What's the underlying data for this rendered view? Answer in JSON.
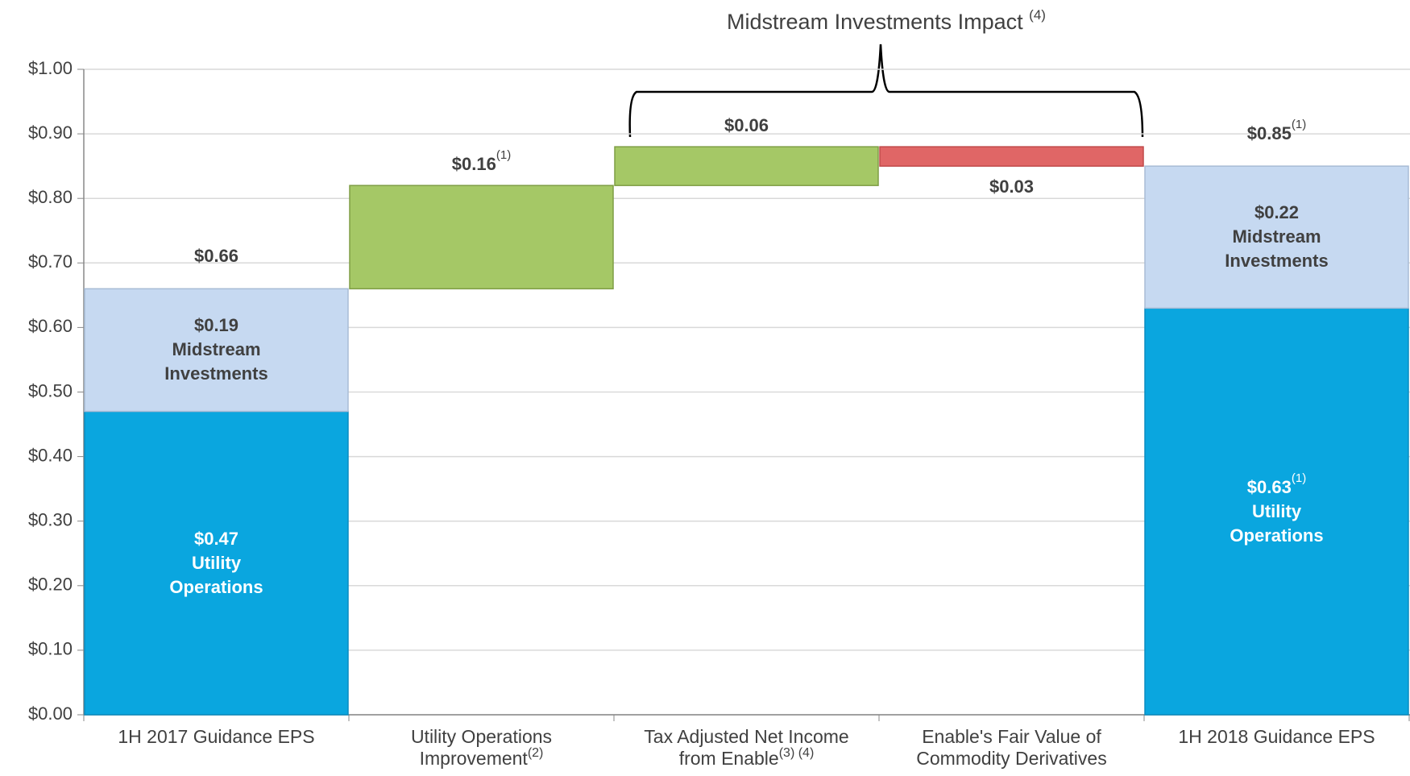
{
  "chart_data": {
    "type": "waterfall",
    "title": "Midstream Investments Impact",
    "title_note": "(4)",
    "ylim": [
      0,
      1
    ],
    "yticks": [
      {
        "value": 0,
        "label": "$0.00"
      },
      {
        "value": 0.1,
        "label": "$0.10"
      },
      {
        "value": 0.2,
        "label": "$0.20"
      },
      {
        "value": 0.3,
        "label": "$0.30"
      },
      {
        "value": 0.4,
        "label": "$0.40"
      },
      {
        "value": 0.5,
        "label": "$0.50"
      },
      {
        "value": 0.6,
        "label": "$0.60"
      },
      {
        "value": 0.7,
        "label": "$0.70"
      },
      {
        "value": 0.8,
        "label": "$0.80"
      },
      {
        "value": 0.9,
        "label": "$0.90"
      },
      {
        "value": 1,
        "label": "$1.00"
      }
    ],
    "grid": true,
    "categories": [
      "1H 2017 Guidance EPS",
      "Utility Operations Improvement",
      "Tax Adjusted Net Income from Enable",
      "Enable's Fair Value of Commodity Derivatives",
      "1H 2018 Guidance EPS"
    ],
    "bars": [
      {
        "kind": "total",
        "total": 0.66,
        "total_label": "$0.66",
        "segments": [
          {
            "name": "Utility Operations",
            "value": 0.47,
            "value_label": "$0.47",
            "color": "#0aa6df"
          },
          {
            "name": "Midstream Investments",
            "value": 0.19,
            "value_label": "$0.19",
            "color": "#c6d9f1"
          }
        ]
      },
      {
        "kind": "delta",
        "value": 0.16,
        "value_label": "$0.16",
        "value_note": "(1)",
        "color": "#a5c866",
        "category_note": "(2)"
      },
      {
        "kind": "delta",
        "value": 0.06,
        "value_label": "$0.06",
        "color": "#a5c866",
        "category_note": "(3) (4)"
      },
      {
        "kind": "delta",
        "value": -0.03,
        "value_label": "$0.03",
        "color": "#e06666"
      },
      {
        "kind": "total",
        "total": 0.85,
        "total_label": "$0.85",
        "total_note": "(1)",
        "segments": [
          {
            "name": "Utility Operations",
            "value": 0.63,
            "value_label": "$0.63",
            "value_note": "(1)",
            "color": "#0aa6df"
          },
          {
            "name": "Midstream Investments",
            "value": 0.22,
            "value_label": "$0.22",
            "color": "#c6d9f1"
          }
        ]
      }
    ]
  }
}
